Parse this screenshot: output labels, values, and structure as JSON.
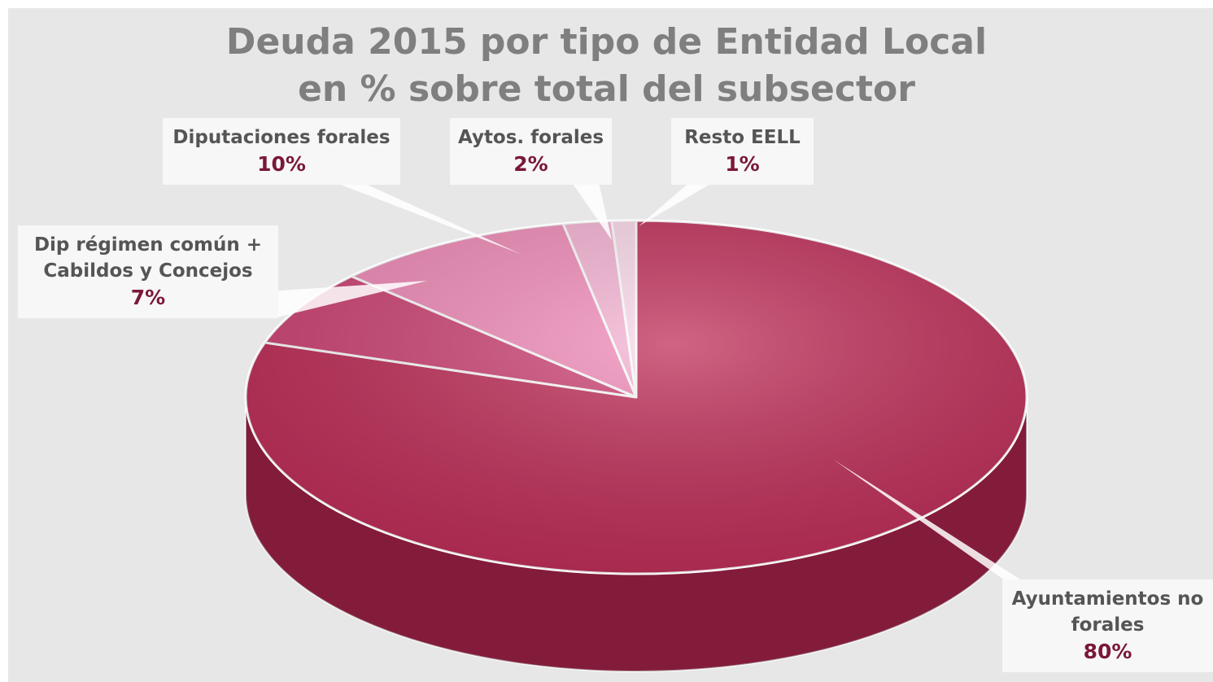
{
  "chart_data": {
    "type": "pie",
    "title": "Deuda 2015 por tipo de Entidad Local",
    "subtitle": "en % sobre total del subsector",
    "categories": [
      "Ayuntamientos no forales",
      "Dip régimen común + Cabildos y Concejos",
      "Diputaciones forales",
      "Aytos. forales",
      "Resto EELL"
    ],
    "values": [
      80,
      7,
      10,
      2,
      1
    ],
    "value_labels": [
      "80%",
      "7%",
      "10%",
      "2%",
      "1%"
    ],
    "colors": [
      "#c0305a",
      "#cf4677",
      "#f28dba",
      "#f6b4d4",
      "#fbd9eb"
    ]
  }
}
